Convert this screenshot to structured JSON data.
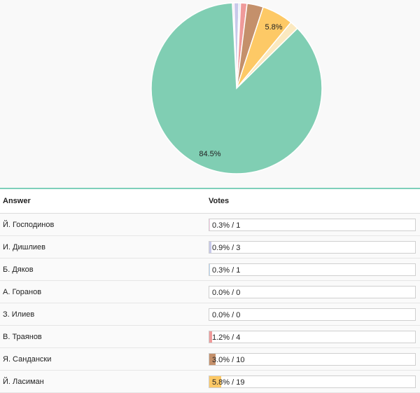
{
  "chart_data": {
    "type": "pie",
    "slices": [
      {
        "label": "Й. Господинов",
        "percent": 0.3,
        "votes": 1,
        "color": "#f5d0e6"
      },
      {
        "label": "И. Дишлиев",
        "percent": 0.9,
        "votes": 3,
        "color": "#c7c9ea"
      },
      {
        "label": "Б. Дяков",
        "percent": 0.3,
        "votes": 1,
        "color": "#bcd8f2"
      },
      {
        "label": "А. Горанов",
        "percent": 0.0,
        "votes": 0,
        "color": "#e0e0e0"
      },
      {
        "label": "З. Илиев",
        "percent": 0.0,
        "votes": 0,
        "color": "#e0e0e0"
      },
      {
        "label": "В. Траянов",
        "percent": 1.2,
        "votes": 4,
        "color": "#ef9a9a"
      },
      {
        "label": "Я. Сандански",
        "percent": 3.0,
        "votes": 10,
        "color": "#c4906b"
      },
      {
        "label": "Й. Ласиман",
        "percent": 5.8,
        "votes": 19,
        "color": "#fdc966"
      },
      {
        "label": "",
        "percent": 1.6,
        "votes": null,
        "color": "#fbe9c0"
      },
      {
        "label": "",
        "percent": 84.5,
        "votes": null,
        "color": "#80ceb3"
      }
    ],
    "slice_labels": [
      "5.8%",
      "84.5%"
    ]
  },
  "table": {
    "headers": {
      "answer": "Answer",
      "votes": "Votes"
    },
    "rows": [
      {
        "answer": "Й. Господинов",
        "votes_text": "0.3% / 1",
        "percent": 0.3,
        "color": "#f5d0e6"
      },
      {
        "answer": "И. Дишлиев",
        "votes_text": "0.9% / 3",
        "percent": 0.9,
        "color": "#c7c9ea"
      },
      {
        "answer": "Б. Дяков",
        "votes_text": "0.3% / 1",
        "percent": 0.3,
        "color": "#bcd8f2"
      },
      {
        "answer": "А. Горанов",
        "votes_text": "0.0% / 0",
        "percent": 0.0,
        "color": "#e0e0e0"
      },
      {
        "answer": "З. Илиев",
        "votes_text": "0.0% / 0",
        "percent": 0.0,
        "color": "#e0e0e0"
      },
      {
        "answer": "В. Траянов",
        "votes_text": "1.2% / 4",
        "percent": 1.2,
        "color": "#ef9a9a"
      },
      {
        "answer": "Я. Сандански",
        "votes_text": "3.0% / 10",
        "percent": 3.0,
        "color": "#c4906b"
      },
      {
        "answer": "Й. Ласиман",
        "votes_text": "5.8% / 19",
        "percent": 5.8,
        "color": "#fdc966"
      }
    ]
  }
}
